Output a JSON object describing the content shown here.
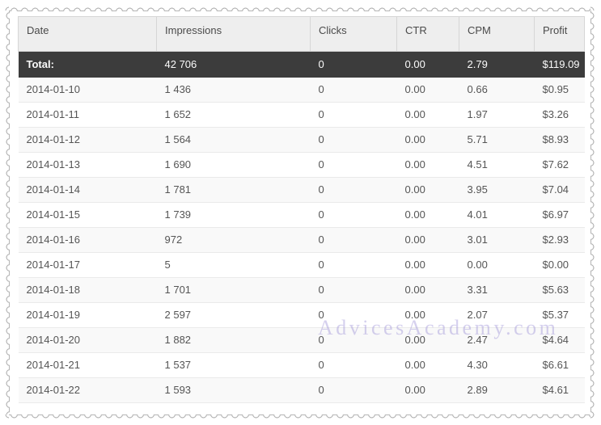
{
  "watermark": {
    "text": "AdvicesAcademy.com",
    "color": "#b3abdf"
  },
  "table": {
    "columns": [
      {
        "key": "date",
        "label": "Date"
      },
      {
        "key": "impressions",
        "label": "Impressions"
      },
      {
        "key": "clicks",
        "label": "Clicks"
      },
      {
        "key": "ctr",
        "label": "CTR"
      },
      {
        "key": "cpm",
        "label": "CPM"
      },
      {
        "key": "profit",
        "label": "Profit"
      }
    ],
    "total_row": {
      "date": "Total:",
      "impressions": "42 706",
      "clicks": "0",
      "ctr": "0.00",
      "cpm": "2.79",
      "profit": "$119.09"
    },
    "rows": [
      {
        "date": "2014-01-10",
        "impressions": "1 436",
        "clicks": "0",
        "ctr": "0.00",
        "cpm": "0.66",
        "profit": "$0.95"
      },
      {
        "date": "2014-01-11",
        "impressions": "1 652",
        "clicks": "0",
        "ctr": "0.00",
        "cpm": "1.97",
        "profit": "$3.26"
      },
      {
        "date": "2014-01-12",
        "impressions": "1 564",
        "clicks": "0",
        "ctr": "0.00",
        "cpm": "5.71",
        "profit": "$8.93"
      },
      {
        "date": "2014-01-13",
        "impressions": "1 690",
        "clicks": "0",
        "ctr": "0.00",
        "cpm": "4.51",
        "profit": "$7.62"
      },
      {
        "date": "2014-01-14",
        "impressions": "1 781",
        "clicks": "0",
        "ctr": "0.00",
        "cpm": "3.95",
        "profit": "$7.04"
      },
      {
        "date": "2014-01-15",
        "impressions": "1 739",
        "clicks": "0",
        "ctr": "0.00",
        "cpm": "4.01",
        "profit": "$6.97"
      },
      {
        "date": "2014-01-16",
        "impressions": "972",
        "clicks": "0",
        "ctr": "0.00",
        "cpm": "3.01",
        "profit": "$2.93"
      },
      {
        "date": "2014-01-17",
        "impressions": "5",
        "clicks": "0",
        "ctr": "0.00",
        "cpm": "0.00",
        "profit": "$0.00"
      },
      {
        "date": "2014-01-18",
        "impressions": "1 701",
        "clicks": "0",
        "ctr": "0.00",
        "cpm": "3.31",
        "profit": "$5.63"
      },
      {
        "date": "2014-01-19",
        "impressions": "2 597",
        "clicks": "0",
        "ctr": "0.00",
        "cpm": "2.07",
        "profit": "$5.37"
      },
      {
        "date": "2014-01-20",
        "impressions": "1 882",
        "clicks": "0",
        "ctr": "0.00",
        "cpm": "2.47",
        "profit": "$4.64"
      },
      {
        "date": "2014-01-21",
        "impressions": "1 537",
        "clicks": "0",
        "ctr": "0.00",
        "cpm": "4.30",
        "profit": "$6.61"
      },
      {
        "date": "2014-01-22",
        "impressions": "1 593",
        "clicks": "0",
        "ctr": "0.00",
        "cpm": "2.89",
        "profit": "$4.61"
      }
    ]
  },
  "colors": {
    "header_bg": "#eeeeee",
    "header_text": "#4a4a4a",
    "total_row_bg": "#3c3c3c",
    "total_row_text": "#fbfbfb",
    "row_stripe_bg": "#f9f9f9",
    "row_text": "#555555",
    "row_divider": "#eaeaea",
    "header_border": "#d6d6d6",
    "stamp_edge": "#b5b5b5"
  }
}
